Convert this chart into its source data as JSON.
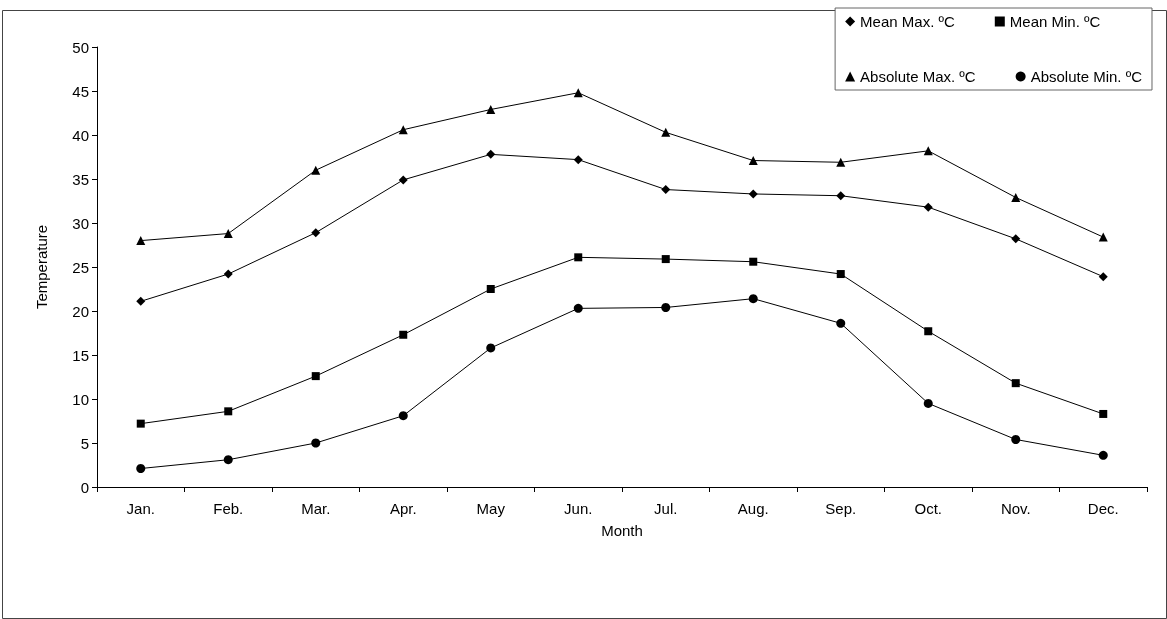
{
  "chart_data": {
    "type": "line",
    "xlabel": "Month",
    "ylabel": "Temperature",
    "categories": [
      "Jan.",
      "Feb.",
      "Mar.",
      "Apr.",
      "May",
      "Jun.",
      "Jul.",
      "Aug.",
      "Sep.",
      "Oct.",
      "Nov.",
      "Dec."
    ],
    "series": [
      {
        "name": "Mean Max. ºC",
        "color": "#000000",
        "marker": "diamond",
        "values": [
          21.1,
          24.2,
          28.9,
          34.9,
          37.8,
          37.2,
          33.8,
          33.3,
          33.1,
          31.8,
          28.2,
          23.9
        ]
      },
      {
        "name": "Mean Min. ºC",
        "color": "#000000",
        "marker": "square",
        "values": [
          7.2,
          8.6,
          12.6,
          17.3,
          22.5,
          26.1,
          25.9,
          25.6,
          24.2,
          17.7,
          11.8,
          8.3
        ]
      },
      {
        "name": "Absolute Max. ºC",
        "color": "#000000",
        "marker": "triangle",
        "values": [
          28,
          28.8,
          36,
          40.6,
          42.9,
          44.8,
          40.3,
          37.1,
          36.9,
          38.2,
          32.9,
          28.4
        ]
      },
      {
        "name": "Absolute Min. ºC",
        "color": "#000000",
        "marker": "circle",
        "values": [
          2.1,
          3.1,
          5.0,
          8.1,
          15.8,
          20.3,
          20.4,
          21.4,
          18.6,
          9.5,
          5.4,
          3.6
        ]
      }
    ],
    "ylim": [
      0,
      50
    ],
    "yticks": [
      0,
      5,
      10,
      15,
      20,
      25,
      30,
      35,
      40,
      45,
      50
    ],
    "grid": false,
    "legend": "top right",
    "line_style": "solid"
  }
}
